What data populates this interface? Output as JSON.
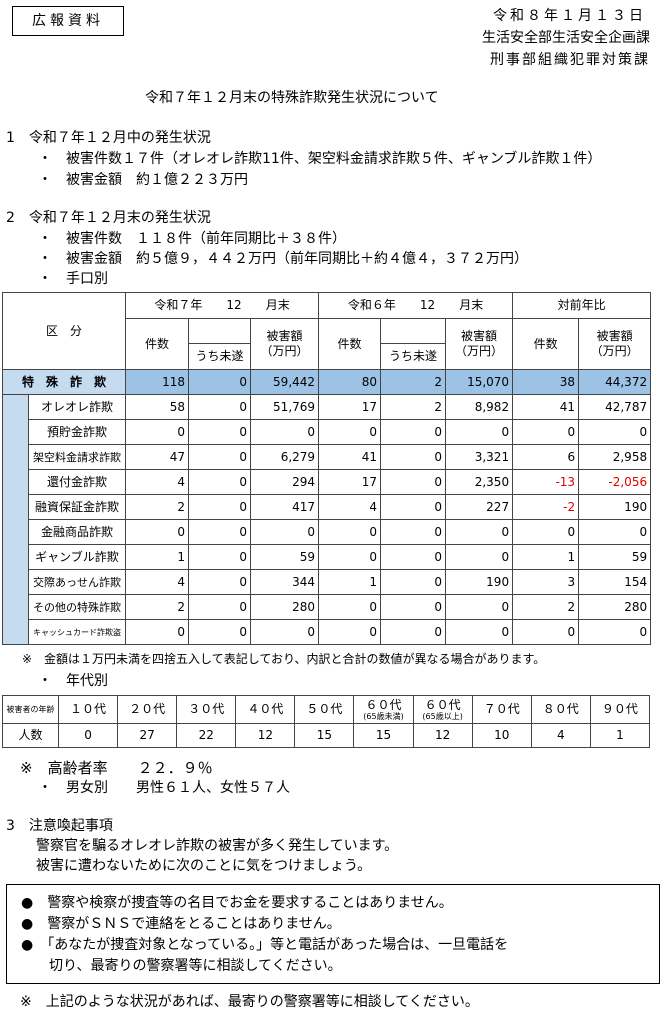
{
  "header": {
    "badge": "広報資料",
    "date": "令和８年１月１３日",
    "dept1": "生活安全部生活安全企画課",
    "dept2": "刑事部組織犯罪対策課"
  },
  "title": "令和７年１２月末の特殊詐欺発生状況について",
  "section1": {
    "heading": "1　令和７年１２月中の発生状況",
    "items": [
      "・　被害件数１７件（オレオレ詐欺11件、架空料金請求詐欺５件、ギャンブル詐欺１件）",
      "・　被害金額　約１億２２３万円"
    ]
  },
  "section2": {
    "heading": "2　令和７年１２月末の発生状況",
    "items": [
      "・　被害件数　１１８件（前年同期比＋３８件）",
      "・　被害金額　約５億９，４４２万円（前年同期比＋約４億４，３７２万円）",
      "・　手口別"
    ]
  },
  "main_table": {
    "category_header": "区　分",
    "period1": {
      "era": "令和７年",
      "month": "12",
      "suffix": "月末"
    },
    "period2": {
      "era": "令和６年",
      "month": "12",
      "suffix": "月末"
    },
    "period3": "対前年比",
    "col_count": "件数",
    "col_attempt": "うち未遂",
    "col_amount": "被害額\n（万円）",
    "total": {
      "label": "特　殊　詐　欺",
      "values": [
        "118",
        "0",
        "59,442",
        "80",
        "2",
        "15,070",
        "38",
        "44,372"
      ]
    },
    "rows": [
      {
        "label": "オレオレ詐欺",
        "values": [
          "58",
          "0",
          "51,769",
          "17",
          "2",
          "8,982",
          "41",
          "42,787"
        ]
      },
      {
        "label": "預貯金詐欺",
        "values": [
          "0",
          "0",
          "0",
          "0",
          "0",
          "0",
          "0",
          "0"
        ]
      },
      {
        "label": "架空料金請求詐欺",
        "values": [
          "47",
          "0",
          "6,279",
          "41",
          "0",
          "3,321",
          "6",
          "2,958"
        ]
      },
      {
        "label": "還付金詐欺",
        "values": [
          "4",
          "0",
          "294",
          "17",
          "0",
          "2,350",
          "-13",
          "-2,056"
        ]
      },
      {
        "label": "融資保証金詐欺",
        "values": [
          "2",
          "0",
          "417",
          "4",
          "0",
          "227",
          "-2",
          "190"
        ]
      },
      {
        "label": "金融商品詐欺",
        "values": [
          "0",
          "0",
          "0",
          "0",
          "0",
          "0",
          "0",
          "0"
        ]
      },
      {
        "label": "ギャンブル詐欺",
        "values": [
          "1",
          "0",
          "59",
          "0",
          "0",
          "0",
          "1",
          "59"
        ]
      },
      {
        "label": "交際あっせん詐欺",
        "values": [
          "4",
          "0",
          "344",
          "1",
          "0",
          "190",
          "3",
          "154"
        ]
      },
      {
        "label": "その他の特殊詐欺",
        "values": [
          "2",
          "0",
          "280",
          "0",
          "0",
          "0",
          "2",
          "280"
        ]
      },
      {
        "label": "キャッシュカード詐欺盗",
        "values": [
          "0",
          "0",
          "0",
          "0",
          "0",
          "0",
          "0",
          "0"
        ]
      }
    ],
    "negative_color": "#e00000"
  },
  "note1": "※　金額は１万円未満を四捨五入して表記しており、内訳と合計の数値が異なる場合があります。",
  "age_heading": "・　年代別",
  "age_table": {
    "row_label1": "被害者の年齢",
    "row_label2": "人数",
    "ages": [
      {
        "a": "１０代"
      },
      {
        "a": "２０代"
      },
      {
        "a": "３０代"
      },
      {
        "a": "４０代"
      },
      {
        "a": "５０代"
      },
      {
        "a": "６０代",
        "s": "(65歳未満)"
      },
      {
        "a": "６０代",
        "s": "(65歳以上)"
      },
      {
        "a": "７０代"
      },
      {
        "a": "８０代"
      },
      {
        "a": "９０代"
      }
    ],
    "counts": [
      "0",
      "27",
      "22",
      "12",
      "15",
      "15",
      "12",
      "10",
      "4",
      "1"
    ]
  },
  "elderly": "※　高齢者率　　２２．９％",
  "gender": "・　男女別　　男性６１人、女性５７人",
  "section3": {
    "heading": "3　注意喚起事項",
    "lines": [
      "警察官を騙るオレオレ詐欺の被害が多く発生しています。",
      "被害に遭わないために次のことに気をつけましょう。"
    ]
  },
  "notice": [
    "●　警察や検察が捜査等の名目でお金を要求することはありません。",
    "●　警察がＳＮＳで連絡をとることはありません。",
    "●　「あなたが捜査対象となっている。」等と電話があった場合は、一旦電話を",
    "　　切り、最寄りの警察署等に相談してください。"
  ],
  "footer": "※　上記のような状況があれば、最寄りの警察署等に相談してください。"
}
